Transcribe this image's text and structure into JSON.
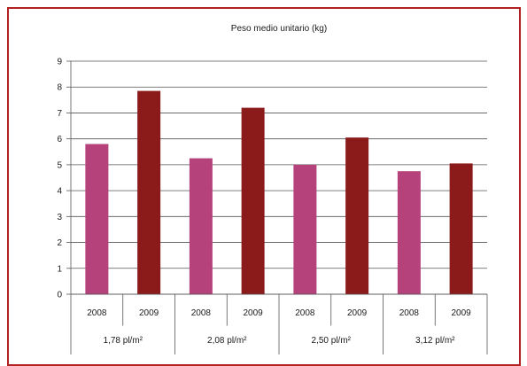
{
  "chart_data": {
    "type": "bar",
    "title": "Peso medio unitario (kg)",
    "xlabel": "",
    "ylabel": "",
    "ylim": [
      0,
      9
    ],
    "yticks": [
      0,
      1,
      2,
      3,
      4,
      5,
      6,
      7,
      8,
      9
    ],
    "grid": true,
    "groups": [
      "1,78 pl/m²",
      "2,08 pl/m²",
      "2,50 pl/m²",
      "3,12 pl/m²"
    ],
    "categories": [
      "2008",
      "2009"
    ],
    "colors": {
      "2008": "#b5427a",
      "2009": "#8b1a1a"
    },
    "values": [
      [
        5.8,
        7.85
      ],
      [
        5.25,
        7.2
      ],
      [
        5.0,
        6.05
      ],
      [
        4.75,
        5.05
      ]
    ]
  }
}
